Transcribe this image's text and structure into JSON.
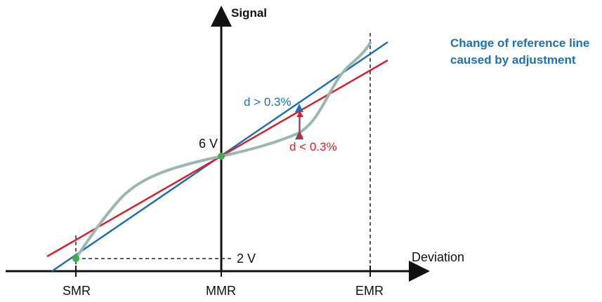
{
  "title": {
    "line1": "Change of reference line",
    "line2": "caused by adjustment"
  },
  "axes": {
    "y_label": "Signal",
    "x_label": "Deviation"
  },
  "labels": {
    "upper_signal": "6 V",
    "lower_signal": "2 V",
    "d_greater": "d > 0.3%",
    "d_less": "d < 0.3%"
  },
  "ticks": {
    "smr": "SMR",
    "mmr": "MMR",
    "emr": "EMR"
  },
  "colors": {
    "axis": "#111111",
    "blue_line": "#1f6fb3",
    "red_line": "#d72027",
    "curve": "#9ab7b4",
    "point": "#3fae49",
    "title": "#1f6fb3",
    "dashed": "#222222"
  }
}
